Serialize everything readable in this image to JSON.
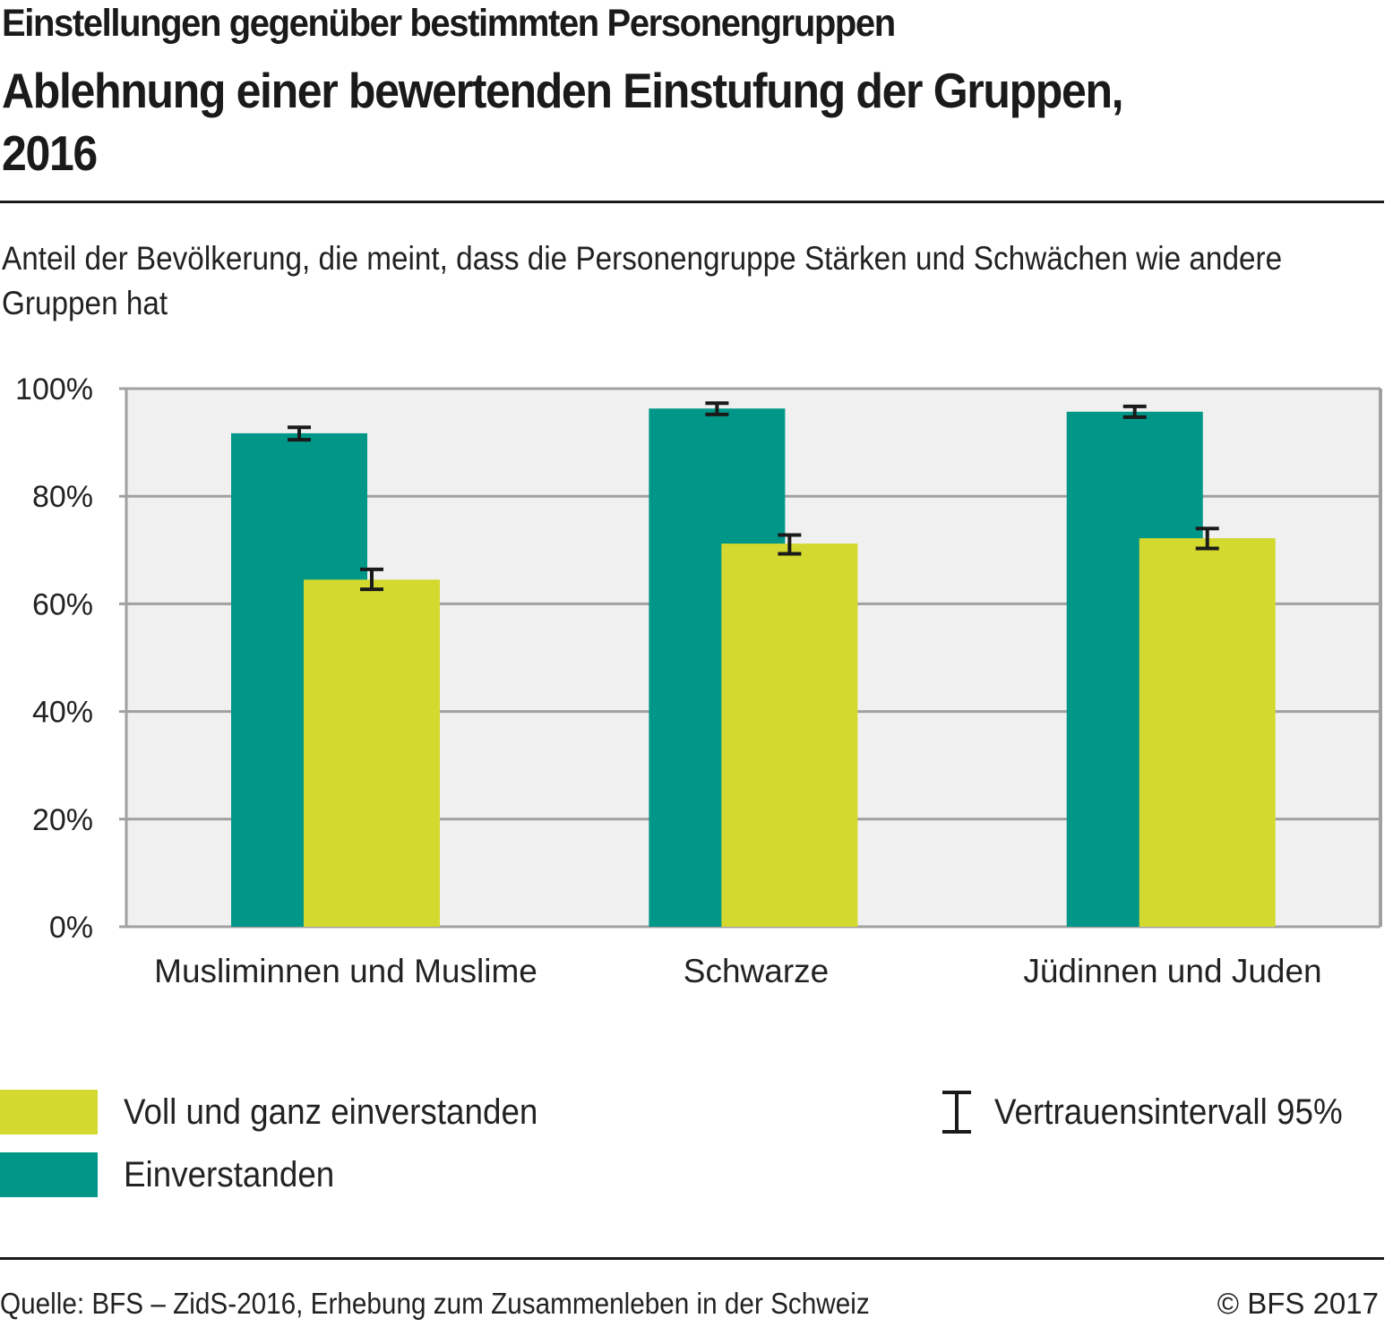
{
  "header": {
    "kicker": "Einstellungen gegenüber bestimmten Personengruppen",
    "title": "Ablehnung einer bewertenden Einstufung der Gruppen, 2016",
    "subtitle": "Anteil der Bevölkerung, die meint, dass die Personengruppe Stärken und Schwächen wie andere Gruppen hat"
  },
  "chart_data": {
    "type": "bar",
    "title": "Ablehnung einer bewertenden Einstufung der Gruppen, 2016",
    "subtitle": "Anteil der Bevölkerung, die meint, dass die Personengruppe Stärken und Schwächen wie andere Gruppen hat",
    "xlabel": "",
    "ylabel": "",
    "categories": [
      "Musliminnen und Muslime",
      "Schwarze",
      "Jüdinnen und Juden"
    ],
    "series": [
      {
        "name": "Einverstanden",
        "color": "#009788",
        "values": [
          91.7,
          96.3,
          95.7
        ],
        "ci_low": [
          90.5,
          95.2,
          94.7
        ],
        "ci_high": [
          92.8,
          97.3,
          96.7
        ]
      },
      {
        "name": "Voll und ganz einverstanden",
        "color": "#d4d92f",
        "values": [
          64.5,
          71.2,
          72.2
        ],
        "ci_low": [
          62.7,
          69.3,
          70.3
        ],
        "ci_high": [
          66.4,
          72.8,
          74.0
        ]
      }
    ],
    "ylim": [
      0,
      100
    ],
    "yticks": [
      0,
      20,
      40,
      60,
      80,
      100
    ],
    "ytick_labels": [
      "0%",
      "20%",
      "40%",
      "60%",
      "80%",
      "100%"
    ],
    "grid": true,
    "plot_background": "#f0f0f0",
    "grid_color": "#a0a0a0",
    "legend_placement": "bottom",
    "error_bars": "Vertrauensintervall 95%"
  },
  "legend": {
    "items": [
      {
        "label": "Voll und ganz einverstanden",
        "color": "#d4d92f"
      },
      {
        "label": "Einverstanden",
        "color": "#009788"
      }
    ],
    "ci_label": "Vertrauensintervall 95%"
  },
  "footer": {
    "source": "Quelle: BFS – ZidS-2016, Erhebung zum Zusammenleben in der Schweiz",
    "copyright": "© BFS 2017"
  }
}
